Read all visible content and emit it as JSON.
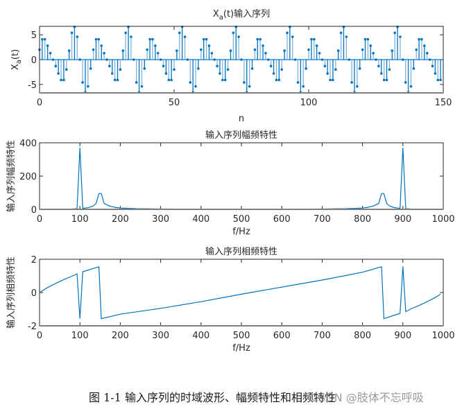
{
  "colors": {
    "line": "#0072BD",
    "stem_light": "#7fb3dd",
    "axis": "#262626",
    "axis_bottom": "#808080"
  },
  "caption": "图 1-1 输入序列的时域波形、幅频特性和相频特性",
  "watermark": "CSDN @肢体不忘呼吸",
  "chart_data": [
    {
      "type": "stem",
      "title": "Xa(t)输入序列",
      "title_main": "X",
      "title_sub": "a",
      "title_rest": "(t)输入序列",
      "xlabel": "n",
      "ylabel": "Xa(t)",
      "xlim": [
        0,
        150
      ],
      "ylim": [
        -6.7,
        6.7
      ],
      "xticks": [
        0,
        50,
        100,
        150
      ],
      "yticks": [
        -5,
        0,
        5
      ],
      "period": 20,
      "one_period_values": [
        2.0,
        4.1,
        4.1,
        2.8,
        1.3,
        0.0,
        -1.3,
        -2.8,
        -4.1,
        -4.1,
        -2.0,
        1.8,
        5.4,
        6.6,
        4.6,
        0.0,
        -4.6,
        -6.6,
        -5.4,
        -1.8
      ],
      "n_range": [
        0,
        149
      ]
    },
    {
      "type": "line",
      "title": "输入序列幅频特性",
      "xlabel": "f/Hz",
      "ylabel": "输入序列幅频特性",
      "xlim": [
        0,
        1000
      ],
      "ylim": [
        0,
        400
      ],
      "xticks": [
        0,
        100,
        200,
        300,
        400,
        500,
        600,
        700,
        800,
        900,
        1000
      ],
      "yticks": [
        0,
        200,
        400
      ],
      "x": [
        0,
        40,
        80,
        93,
        100,
        107,
        120,
        133,
        140,
        147,
        153,
        160,
        173,
        187,
        200,
        240,
        300,
        400,
        500,
        600,
        700,
        760,
        800,
        813,
        827,
        840,
        847,
        853,
        860,
        867,
        880,
        893,
        900,
        907,
        920,
        960,
        1000
      ],
      "values": [
        0.5,
        1,
        2,
        4,
        371,
        6,
        10,
        20,
        35,
        95,
        95,
        35,
        20,
        12,
        8,
        4,
        2,
        1,
        0.5,
        1,
        2,
        4,
        8,
        12,
        20,
        35,
        95,
        95,
        35,
        20,
        10,
        6,
        371,
        4,
        2,
        1,
        0.5
      ]
    },
    {
      "type": "line",
      "title": "输入序列相频特性",
      "xlabel": "f/Hz",
      "ylabel": "输入序列相频特性",
      "xlim": [
        0,
        1000
      ],
      "ylim": [
        -2,
        2
      ],
      "xticks": [
        0,
        100,
        200,
        300,
        400,
        500,
        600,
        700,
        800,
        900,
        1000
      ],
      "yticks": [
        -2,
        0,
        2
      ],
      "x": [
        0,
        20,
        40,
        60,
        80,
        93,
        100,
        107,
        147,
        153,
        200,
        300,
        400,
        500,
        600,
        700,
        800,
        847,
        853,
        893,
        900,
        907,
        920,
        940,
        960,
        980,
        993
      ],
      "values": [
        0.0,
        0.3,
        0.55,
        0.78,
        0.98,
        1.12,
        -1.57,
        1.25,
        1.55,
        -1.57,
        -1.3,
        -0.95,
        -0.55,
        -0.1,
        0.33,
        0.75,
        1.22,
        1.55,
        -1.57,
        -1.25,
        1.57,
        -1.15,
        -0.98,
        -0.78,
        -0.55,
        -0.3,
        -0.1
      ]
    }
  ]
}
